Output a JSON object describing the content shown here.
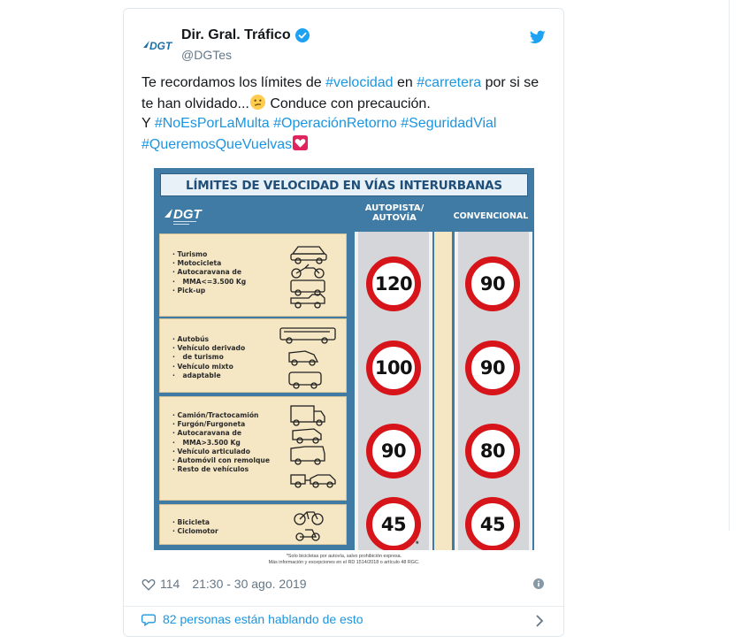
{
  "tweet": {
    "author_name": "Dir. Gral. Tráfico",
    "author_handle": "@DGTes",
    "text": {
      "line1_pre": "Te recordamos los límites de ",
      "hashtag_velocidad": "#velocidad",
      "line1_mid": " en ",
      "hashtag_carretera": "#carretera",
      "line1_post": " por si se te han olvidado...",
      "line2_post": " Conduce con precaución.",
      "line3_pre": "Y ",
      "hashtag_noespor": "#NoEsPorLaMulta",
      "hashtag_operacion": "#OperaciónRetorno",
      "hashtag_seguridad": "#SeguridadVial",
      "hashtag_queremos": "#QueremosQueVuelvas"
    },
    "likes": "114",
    "timestamp": "21:30 - 30 ago. 2019",
    "conversation": "82 personas están hablando de esto"
  },
  "infographic": {
    "title": "LÍMITES DE VELOCIDAD  EN VÍAS INTERURBANAS",
    "logo_text": "DGT",
    "col_autopista_line1": "AUTOPISTA/",
    "col_autopista_line2": "AUTOVÍA",
    "col_convencional": "CONVENCIONAL",
    "groups": [
      {
        "items": [
          "Turismo",
          "Motocicleta",
          "Autocaravana de",
          "MMA<=3.500 Kg",
          "Pick-up"
        ],
        "autopista": "120",
        "convencional": "90"
      },
      {
        "items": [
          "Autobús",
          "Vehículo derivado",
          "de turismo",
          "Vehículo mixto",
          "adaptable"
        ],
        "autopista": "100",
        "convencional": "90"
      },
      {
        "items": [
          "Camión/Tractocamión",
          "Furgón/Furgoneta",
          "Autocaravana de",
          "MMA>3.500 Kg",
          "Vehículo articulado",
          "Automóvil con remolque",
          "Resto de vehículos"
        ],
        "autopista": "90",
        "convencional": "80"
      },
      {
        "items": [
          "Bicicleta",
          "Ciclomotor"
        ],
        "autopista": "45",
        "convencional": "45"
      }
    ],
    "asterisk": "*",
    "footnote_line1": "*Solo bicicletas por autovía, salvo prohibición expresa.",
    "footnote_line2": "Más información y excepciones en el RD 1514/2018 o artículo 48 RGC."
  },
  "colors": {
    "link": "#1b95e0",
    "text": "#14171a",
    "muted": "#657786",
    "panel_blue": "#3f7ba4",
    "panel_cream": "#f5e6c4",
    "sign_red": "#d7141a"
  },
  "icons": {
    "verified": "verified-badge-icon",
    "bird": "twitter-bird-icon",
    "like": "heart-icon",
    "info": "info-icon",
    "reply": "speech-bubble-icon",
    "more": "chevron-right-icon"
  }
}
